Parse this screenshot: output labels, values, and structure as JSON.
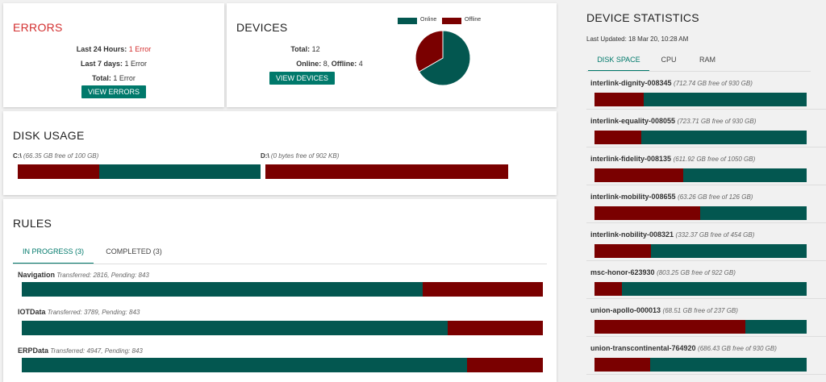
{
  "colors": {
    "used": "#7a0000",
    "free": "#035750",
    "accent": "#00796b",
    "error": "#d32f2f"
  },
  "errors": {
    "title": "ERRORS",
    "lines": [
      {
        "label": "Last 24 Hours:",
        "value": "1 Error",
        "highlight": true
      },
      {
        "label": "Last 7 days:",
        "value": "1 Error",
        "highlight": false
      },
      {
        "label": "Total:",
        "value": "1 Error",
        "highlight": false
      }
    ],
    "button": "VIEW ERRORS"
  },
  "devices": {
    "title": "DEVICES",
    "total_label": "Total:",
    "total_value": "12",
    "online_label": "Online:",
    "online_value": "8",
    "offline_label": "Offline:",
    "offline_value": "4",
    "button": "VIEW DEVICES",
    "legend": {
      "online": "Online",
      "offline": "Offline"
    },
    "chart_data": {
      "type": "pie",
      "series": [
        {
          "name": "Online",
          "value": 8
        },
        {
          "name": "Offline",
          "value": 4
        }
      ]
    }
  },
  "disk_usage": {
    "title": "DISK USAGE",
    "drives": [
      {
        "name": "C:\\",
        "detail": "(66.35 GB free of 100 GB)",
        "used_fraction": 0.3365
      },
      {
        "name": "D:\\",
        "detail": "(0 bytes free of 902 KB)",
        "used_fraction": 1.0
      }
    ]
  },
  "rules": {
    "title": "RULES",
    "tabs": [
      {
        "label": "IN PROGRESS (3)",
        "active": true
      },
      {
        "label": "COMPLETED (3)",
        "active": false
      }
    ],
    "items": [
      {
        "name": "Navigation",
        "detail": "Transferred: 2816, Pending: 843",
        "transferred": 2816,
        "pending": 843
      },
      {
        "name": "IOTData",
        "detail": "Transferred: 3789, Pending: 843",
        "transferred": 3789,
        "pending": 843
      },
      {
        "name": "ERPData",
        "detail": "Transferred: 4947, Pending: 843",
        "transferred": 4947,
        "pending": 843
      }
    ]
  },
  "device_statistics": {
    "title": "DEVICE STATISTICS",
    "last_updated": "Last Updated: 18 Mar 20, 10:28 AM",
    "tabs": [
      {
        "label": "DISK SPACE",
        "active": true
      },
      {
        "label": "CPU",
        "active": false
      },
      {
        "label": "RAM",
        "active": false
      }
    ],
    "devices": [
      {
        "name": "interlink-dignity-008345",
        "detail": "(712.74 GB free of 930 GB)",
        "free": 712.74,
        "total": 930
      },
      {
        "name": "interlink-equality-008055",
        "detail": "(723.71 GB free of 930 GB)",
        "free": 723.71,
        "total": 930
      },
      {
        "name": "interlink-fidelity-008135",
        "detail": "(611.92 GB free of 1050 GB)",
        "free": 611.92,
        "total": 1050
      },
      {
        "name": "interlink-mobility-008655",
        "detail": "(63.26 GB free of 126 GB)",
        "free": 63.26,
        "total": 126
      },
      {
        "name": "interlink-nobility-008321",
        "detail": "(332.37 GB free of 454 GB)",
        "free": 332.37,
        "total": 454
      },
      {
        "name": "msc-honor-623930",
        "detail": "(803.25 GB free of 922 GB)",
        "free": 803.25,
        "total": 922
      },
      {
        "name": "union-apollo-000013",
        "detail": "(68.51 GB free of 237 GB)",
        "free": 68.51,
        "total": 237
      },
      {
        "name": "union-transcontinental-764920",
        "detail": "(686.43 GB free of 930 GB)",
        "free": 686.43,
        "total": 930
      }
    ]
  }
}
